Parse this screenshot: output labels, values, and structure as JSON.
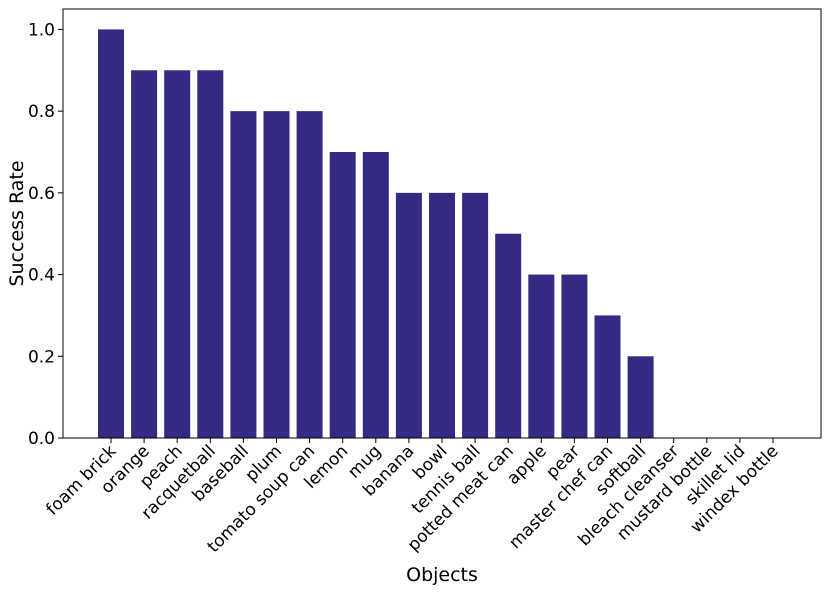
{
  "chart_data": {
    "type": "bar",
    "title": "",
    "xlabel": "Objects",
    "ylabel": "Success Rate",
    "ylim": [
      0,
      1.05
    ],
    "yticks": [
      "0.0",
      "0.2",
      "0.4",
      "0.6",
      "0.8",
      "1.0"
    ],
    "grid": false,
    "bar_color": "#332a83",
    "categories": [
      "foam brick",
      "orange",
      "peach",
      "racquetball",
      "baseball",
      "plum",
      "tomato soup can",
      "lemon",
      "mug",
      "banana",
      "bowl",
      "tennis ball",
      "potted meat can",
      "apple",
      "pear",
      "master chef can",
      "softball",
      "bleach cleanser",
      "mustard bottle",
      "skillet lid",
      "windex bottle"
    ],
    "values": [
      1.0,
      0.9,
      0.9,
      0.9,
      0.8,
      0.8,
      0.8,
      0.7,
      0.7,
      0.6,
      0.6,
      0.6,
      0.5,
      0.4,
      0.4,
      0.3,
      0.2,
      0.0,
      0.0,
      0.0,
      0.0
    ]
  }
}
